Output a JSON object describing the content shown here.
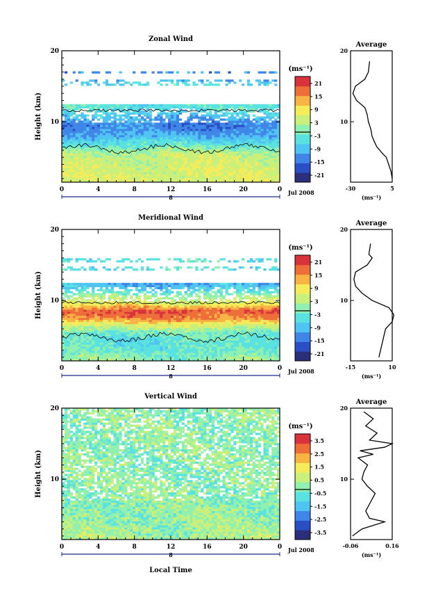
{
  "panels": [
    {
      "title": "Zonal Wind",
      "ylabel": "Height (km)",
      "unit": "(ms⁻¹)",
      "date_label": "Jul 2008",
      "day_label": "8",
      "x_ticks": [
        "0",
        "4",
        "8",
        "12",
        "16",
        "20",
        "0"
      ],
      "y_ticks": [
        "20",
        "10"
      ],
      "colorbar_ticks": [
        "21",
        "15",
        "9",
        "3",
        "-3",
        "-9",
        "-15",
        "-21"
      ],
      "avg_title": "Average",
      "avg_x_ticks": [
        "-30",
        "5"
      ],
      "avg_xlabel": "(ms⁻¹)",
      "avg_y_ticks": [
        "20",
        "10"
      ]
    },
    {
      "title": "Meridional Wind",
      "ylabel": "Height (km)",
      "unit": "(ms⁻¹)",
      "date_label": "Jul 2008",
      "day_label": "8",
      "x_ticks": [
        "0",
        "4",
        "8",
        "12",
        "16",
        "20",
        "0"
      ],
      "y_ticks": [
        "20",
        "10"
      ],
      "colorbar_ticks": [
        "21",
        "15",
        "9",
        "3",
        "-3",
        "-9",
        "-15",
        "-21"
      ],
      "avg_title": "Average",
      "avg_x_ticks": [
        "-15",
        "10"
      ],
      "avg_xlabel": "(ms⁻¹)",
      "avg_y_ticks": [
        "20",
        "10"
      ]
    },
    {
      "title": "Vertical Wind",
      "ylabel": "Height (km)",
      "unit": "(ms⁻¹)",
      "date_label": "Jul 2008",
      "day_label": "8",
      "x_ticks": [
        "0",
        "4",
        "8",
        "12",
        "16",
        "20",
        "0"
      ],
      "y_ticks": [
        "20",
        "10"
      ],
      "colorbar_ticks": [
        "3.5",
        "2.5",
        "1.5",
        "0.5",
        "-0.5",
        "-1.5",
        "-2.5",
        "-3.5"
      ],
      "avg_title": "Average",
      "avg_x_ticks": [
        "-0.06",
        "0.16"
      ],
      "avg_xlabel": "(ms⁻¹)",
      "avg_y_ticks": [
        "20",
        "10"
      ]
    }
  ],
  "xlabel_bottom": "Local Time",
  "colors": {
    "scale": [
      "#2b2f7a",
      "#2a4fc4",
      "#3f86e8",
      "#4fc3f2",
      "#5ae2e0",
      "#8ff0b0",
      "#c9f07a",
      "#f4ec5a",
      "#f7b445",
      "#ee6e3a",
      "#d8323a"
    ]
  },
  "chart_data": [
    {
      "type": "heatmap",
      "title": "Zonal Wind",
      "xlabel": "",
      "ylabel": "Height (km)",
      "x_range_hours": [
        0,
        24
      ],
      "y_range_km": [
        1.5,
        20
      ],
      "colorbar_range": [
        -24,
        24
      ],
      "colorbar_unit": "ms-1",
      "profile_by_height": [
        [
          2,
          6
        ],
        [
          4,
          5
        ],
        [
          5.5,
          4
        ],
        [
          6.5,
          -2
        ],
        [
          8,
          -10
        ],
        [
          9.5,
          -14
        ],
        [
          11,
          -8
        ],
        [
          12,
          -4
        ],
        [
          15.5,
          -6
        ],
        [
          16,
          -12
        ]
      ],
      "data_heights_km": [
        [
          1.5,
          12.5
        ],
        [
          15,
          16
        ],
        [
          16.8,
          17.2
        ]
      ],
      "contour": "zero line near 5–7 km",
      "average_profile": {
        "x_range": [
          -30,
          5
        ],
        "points": [
          [
            5,
            2
          ],
          [
            4,
            3
          ],
          [
            2,
            4
          ],
          [
            0,
            5
          ],
          [
            -3,
            5.5
          ],
          [
            -8,
            6.5
          ],
          [
            -10,
            7.2
          ],
          [
            -12,
            8
          ],
          [
            -13,
            9
          ],
          [
            -15,
            10
          ],
          [
            -16,
            11
          ],
          [
            -18,
            12
          ],
          [
            -25,
            13
          ],
          [
            -28,
            14
          ],
          [
            -26,
            15
          ],
          [
            -18,
            16
          ],
          [
            -15,
            17
          ],
          [
            -14,
            18.5
          ]
        ]
      }
    },
    {
      "type": "heatmap",
      "title": "Meridional Wind",
      "xlabel": "",
      "ylabel": "Height (km)",
      "x_range_hours": [
        0,
        24
      ],
      "y_range_km": [
        1.5,
        20
      ],
      "colorbar_range": [
        -24,
        24
      ],
      "colorbar_unit": "ms-1",
      "profile_by_height": [
        [
          2,
          0
        ],
        [
          3,
          -3
        ],
        [
          4,
          -4
        ],
        [
          5.5,
          -2
        ],
        [
          6.5,
          6
        ],
        [
          7.5,
          16
        ],
        [
          8.5,
          20
        ],
        [
          9.5,
          8
        ],
        [
          10.5,
          2
        ],
        [
          11.5,
          -6
        ],
        [
          12.2,
          -10
        ],
        [
          14.5,
          -4
        ]
      ],
      "data_heights_km": [
        [
          1.5,
          12.5
        ],
        [
          14.2,
          14.8
        ],
        [
          15.5,
          16
        ]
      ],
      "contour": "zero line near 4–6 km",
      "average_profile": {
        "x_range": [
          -15,
          10
        ],
        "points": [
          [
            2,
            2
          ],
          [
            3,
            3
          ],
          [
            4,
            4
          ],
          [
            5,
            5
          ],
          [
            6,
            6
          ],
          [
            10,
            7
          ],
          [
            11,
            8
          ],
          [
            8,
            9
          ],
          [
            -2,
            10
          ],
          [
            -8,
            11
          ],
          [
            -12,
            12
          ],
          [
            -13,
            13
          ],
          [
            -12,
            14
          ],
          [
            -5,
            15
          ],
          [
            -2,
            16
          ],
          [
            -4,
            16.5
          ],
          [
            -3,
            18
          ]
        ]
      }
    },
    {
      "type": "heatmap",
      "title": "Vertical Wind",
      "xlabel": "Local Time",
      "ylabel": "Height (km)",
      "x_range_hours": [
        0,
        24
      ],
      "y_range_km": [
        1.5,
        20
      ],
      "colorbar_range": [
        -4,
        4
      ],
      "colorbar_unit": "ms-1",
      "profile_by_height": [
        [
          2,
          0.3
        ],
        [
          3,
          0.2
        ],
        [
          5,
          0.1
        ],
        [
          7,
          0.05
        ],
        [
          10,
          0.0
        ],
        [
          13,
          0.0
        ],
        [
          16,
          0.05
        ],
        [
          19,
          0.0
        ]
      ],
      "data_heights_km": [
        [
          1.5,
          20
        ]
      ],
      "average_profile": {
        "x_range": [
          -0.06,
          0.16
        ],
        "points": [
          [
            -0.05,
            2
          ],
          [
            0.0,
            3
          ],
          [
            0.12,
            4
          ],
          [
            0.04,
            4.5
          ],
          [
            0.02,
            5.5
          ],
          [
            0.05,
            7
          ],
          [
            0.07,
            8
          ],
          [
            0.03,
            9
          ],
          [
            0.0,
            10
          ],
          [
            0.01,
            11
          ],
          [
            0.03,
            12
          ],
          [
            -0.02,
            13
          ],
          [
            0.06,
            13.5
          ],
          [
            -0.01,
            14
          ],
          [
            0.12,
            14.5
          ],
          [
            0.16,
            15
          ],
          [
            0.04,
            15.5
          ],
          [
            0.08,
            16.5
          ],
          [
            0.02,
            17.5
          ],
          [
            0.06,
            18.5
          ],
          [
            0.01,
            19.5
          ]
        ]
      }
    }
  ]
}
